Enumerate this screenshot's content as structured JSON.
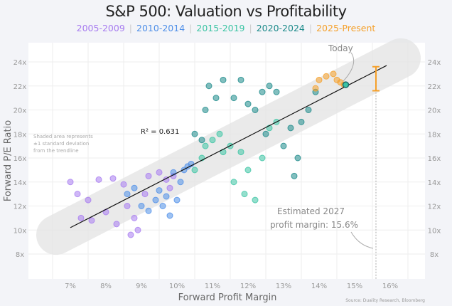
{
  "chart_data": {
    "type": "scatter",
    "title": "S&P 500: Valuation vs Profitability",
    "xlabel": "Forward Profit Margin",
    "ylabel": "Forward P/E Ratio",
    "xlim": [
      5.8,
      17
    ],
    "ylim": [
      5.9,
      25.6
    ],
    "xticks": [
      "7%",
      "8%",
      "9%",
      "10%",
      "11%",
      "12%",
      "13%",
      "14%",
      "15%",
      "16%"
    ],
    "xtick_values": [
      7,
      8,
      9,
      10,
      11,
      12,
      13,
      14,
      15,
      16
    ],
    "yticks": [
      "8x",
      "10x",
      "12x",
      "14x",
      "16x",
      "18x",
      "20x",
      "22x",
      "24x"
    ],
    "ytick_values": [
      8,
      10,
      12,
      14,
      16,
      18,
      20,
      22,
      24
    ],
    "grid": true,
    "legend_position": "top-center",
    "series": [
      {
        "name": "2005-2009",
        "color": "#a77cf0",
        "points": [
          [
            7,
            14
          ],
          [
            7.2,
            13
          ],
          [
            7.3,
            11
          ],
          [
            7.5,
            12.5
          ],
          [
            7.8,
            14.2
          ],
          [
            8.2,
            14.3
          ],
          [
            8.5,
            13.8
          ],
          [
            8.6,
            12
          ],
          [
            8.8,
            11
          ],
          [
            8.9,
            10
          ],
          [
            9.2,
            14.5
          ],
          [
            9.5,
            14.8
          ],
          [
            9.7,
            14.2
          ],
          [
            9.9,
            14.5
          ],
          [
            8.0,
            11.5
          ],
          [
            8.3,
            10.5
          ],
          [
            7.6,
            10.8
          ],
          [
            9.1,
            13
          ],
          [
            8.7,
            9.6
          ],
          [
            9.8,
            13.5
          ]
        ]
      },
      {
        "name": "2010-2014",
        "color": "#4f8fe8",
        "points": [
          [
            8.6,
            13
          ],
          [
            8.8,
            13.5
          ],
          [
            9.0,
            12
          ],
          [
            9.2,
            11.6
          ],
          [
            9.4,
            12.5
          ],
          [
            9.6,
            12.0
          ],
          [
            9.8,
            11.2
          ],
          [
            10.0,
            12.5
          ],
          [
            10.1,
            14
          ],
          [
            10.2,
            15
          ],
          [
            10.3,
            15.3
          ],
          [
            9.9,
            14.8
          ],
          [
            9.5,
            13.3
          ],
          [
            9.7,
            12.8
          ],
          [
            10.4,
            15.5
          ]
        ]
      },
      {
        "name": "2015-2019",
        "color": "#3cc4a4",
        "points": [
          [
            10.5,
            15
          ],
          [
            10.7,
            16
          ],
          [
            10.8,
            17
          ],
          [
            11.0,
            17.5
          ],
          [
            11.2,
            18
          ],
          [
            11.5,
            17
          ],
          [
            11.8,
            16.5
          ],
          [
            12.0,
            15
          ],
          [
            11.6,
            14
          ],
          [
            11.9,
            13
          ],
          [
            12.2,
            12.5
          ],
          [
            12.4,
            16
          ],
          [
            12.6,
            18.5
          ],
          [
            12.8,
            19
          ],
          [
            11.3,
            16.5
          ]
        ]
      },
      {
        "name": "2020-2024",
        "color": "#1c8a8a",
        "points": [
          [
            10.5,
            18
          ],
          [
            10.8,
            20
          ],
          [
            10.9,
            22
          ],
          [
            11.1,
            21
          ],
          [
            11.3,
            22.5
          ],
          [
            11.6,
            21
          ],
          [
            11.8,
            22.5
          ],
          [
            12.0,
            20.5
          ],
          [
            12.2,
            20
          ],
          [
            12.4,
            21.5
          ],
          [
            12.6,
            22
          ],
          [
            12.8,
            21.5
          ],
          [
            13.0,
            17
          ],
          [
            13.2,
            18.5
          ],
          [
            13.4,
            16
          ],
          [
            13.5,
            19
          ],
          [
            13.7,
            20
          ],
          [
            13.9,
            21.5
          ],
          [
            12.5,
            18
          ],
          [
            13.3,
            14.5
          ],
          [
            10.7,
            17.5
          ]
        ]
      },
      {
        "name": "2025-Present",
        "color": "#f5a02a",
        "points": [
          [
            13.9,
            21.8
          ],
          [
            14.0,
            22.5
          ],
          [
            14.2,
            22.8
          ],
          [
            14.4,
            23.0
          ],
          [
            14.5,
            22.5
          ],
          [
            14.6,
            22.3
          ],
          [
            14.7,
            22.1
          ]
        ]
      }
    ],
    "trendline": {
      "x": [
        7,
        15.9
      ],
      "y": [
        10.2,
        23.7
      ],
      "r2_label": "R² = 0.631"
    },
    "today": {
      "label": "Today",
      "x": 14.75,
      "y": 22.1
    },
    "estimate": {
      "x": 15.6,
      "y_low": 21.6,
      "y_high": 23.6,
      "label_line1": "Estimated 2027",
      "label_line2": "profit margin: 15.6%"
    },
    "band_note": [
      "Shaded area represents",
      "±1 standard deviation",
      "from the trendline"
    ],
    "source": "Source: Duality Research, Bloomberg"
  }
}
